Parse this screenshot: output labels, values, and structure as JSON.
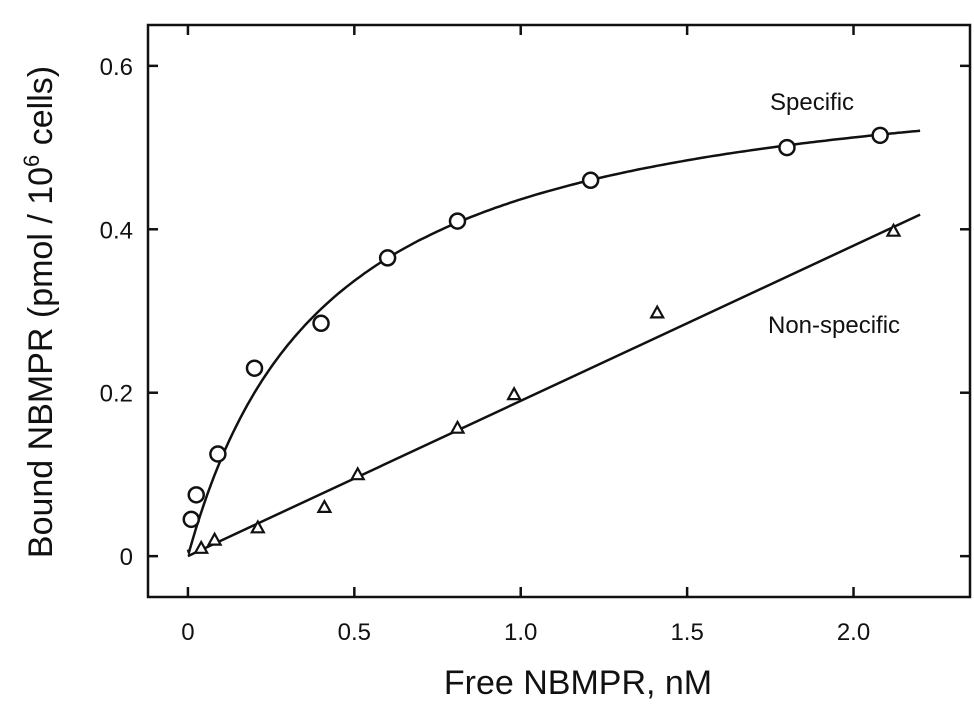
{
  "chart_data": {
    "type": "scatter",
    "xlabel": "Free NBMPR, nM",
    "ylabel_main": "Bound NBMPR (pmol / 10",
    "ylabel_sup": "6",
    "ylabel_tail": " cells)",
    "xlim": [
      -0.12,
      2.35
    ],
    "ylim": [
      -0.05,
      0.65
    ],
    "xticks": [
      0,
      0.5,
      1.0,
      1.5,
      2.0
    ],
    "xtick_labels": [
      "0",
      "0.5",
      "1.0",
      "1.5",
      "2.0"
    ],
    "yticks": [
      0,
      0.2,
      0.4,
      0.6
    ],
    "ytick_labels": [
      "0",
      "0.2",
      "0.4",
      "0.6"
    ],
    "grid": false,
    "series": [
      {
        "name": "Specific",
        "marker": "circle",
        "points": [
          [
            0.01,
            0.045
          ],
          [
            0.025,
            0.075
          ],
          [
            0.09,
            0.125
          ],
          [
            0.2,
            0.23
          ],
          [
            0.4,
            0.285
          ],
          [
            0.6,
            0.365
          ],
          [
            0.81,
            0.41
          ],
          [
            1.21,
            0.46
          ],
          [
            1.8,
            0.5
          ],
          [
            2.08,
            0.515
          ]
        ],
        "fit": {
          "model": "saturation",
          "bmax": 0.62,
          "kd": 0.42,
          "x_end": 2.2
        }
      },
      {
        "name": "Non-specific",
        "marker": "triangle",
        "points": [
          [
            0.04,
            0.01
          ],
          [
            0.08,
            0.02
          ],
          [
            0.21,
            0.035
          ],
          [
            0.41,
            0.06
          ],
          [
            0.51,
            0.1
          ],
          [
            0.81,
            0.157
          ],
          [
            0.98,
            0.198
          ],
          [
            1.41,
            0.298
          ],
          [
            2.12,
            0.398
          ]
        ],
        "fit": {
          "model": "linear",
          "slope": 0.19,
          "intercept": 0.0,
          "x_end": 2.2
        }
      }
    ]
  }
}
